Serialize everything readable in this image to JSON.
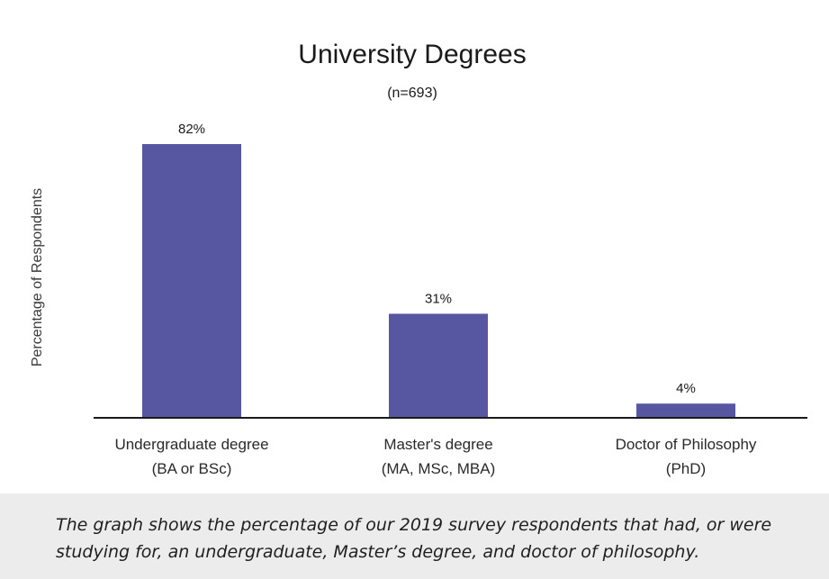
{
  "chart_data": {
    "type": "bar",
    "title": "University Degrees",
    "subtitle": "(n=693)",
    "ylabel": "Percentage of Respondents",
    "xlabel": "",
    "categories": [
      [
        "Undergraduate degree",
        "(BA or BSc)"
      ],
      [
        "Master's degree",
        "(MA, MSc, MBA)"
      ],
      [
        "Doctor of Philosophy",
        "(PhD)"
      ]
    ],
    "values": [
      82,
      31,
      4
    ],
    "data_labels": [
      "82%",
      "31%",
      "4%"
    ],
    "ylim": [
      0,
      100
    ],
    "grid": false,
    "bar_color": "#5656a1"
  },
  "caption": "The graph shows the percentage of our 2019 survey respondents that had, or were studying for, an undergraduate, Master’s degree, and doctor of philosophy."
}
